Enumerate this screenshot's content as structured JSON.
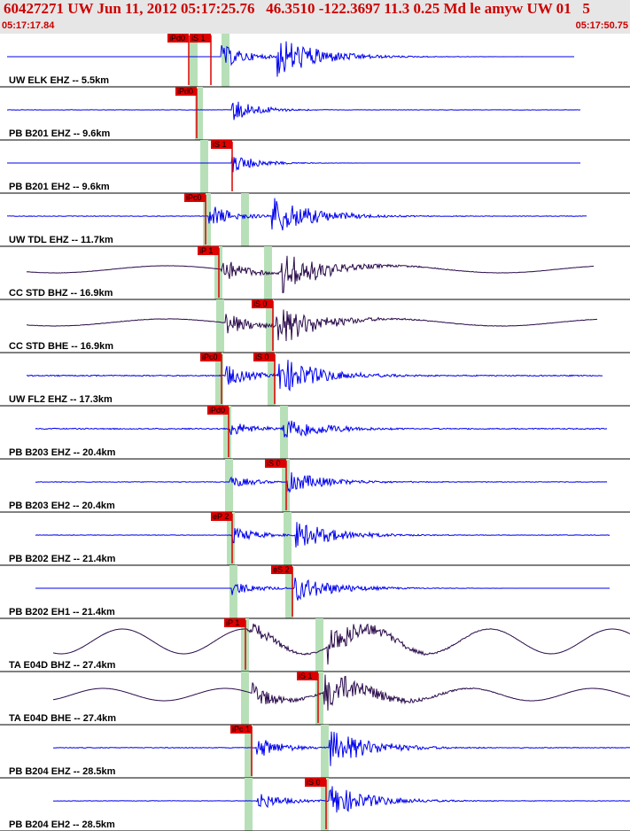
{
  "header": {
    "title": "60427271 UW Jun 11, 2012 05:17:25.76   46.3510 -122.3697 11.3 0.25 Md le amyw UW 01   5",
    "start_time": "05:17:17.84",
    "end_time": "05:17:50.75"
  },
  "colors": {
    "blue_trace": "#0000ee",
    "dark_trace": "#2a0a4a",
    "pick": "#dd0000",
    "window": "#b8e0b8",
    "text_red": "#cc0000"
  },
  "traces": [
    {
      "label": "UW ELK EHZ -- 5.5km",
      "color": "blue",
      "picks": [
        {
          "t": "iPd0"
        },
        {
          "t": "iS 1"
        }
      ],
      "onset": 0.31,
      "amp": 0.9,
      "noise": 0.0
    },
    {
      "label": "PB B201 EHZ -- 9.6km",
      "color": "blue",
      "picks": [
        {
          "t": "iPd0"
        }
      ],
      "onset": 0.35,
      "amp": 0.9,
      "noise": 0.04
    },
    {
      "label": "PB B201 EH2 -- 9.6km",
      "color": "blue",
      "picks": [
        {
          "t": "iS 1"
        }
      ],
      "onset": 0.37,
      "amp": 0.7,
      "noise": 0.0
    },
    {
      "label": "UW TDL EHZ -- 11.7km",
      "color": "blue",
      "picks": [
        {
          "t": "iPc0"
        }
      ],
      "onset": 0.33,
      "amp": 0.85,
      "noise": 0.06
    },
    {
      "label": "CC STD BHZ -- 16.9km",
      "color": "dark",
      "picks": [
        {
          "t": "iP 1"
        }
      ],
      "onset": 0.35,
      "amp": 0.9,
      "noise": 0.03
    },
    {
      "label": "CC STD BHE -- 16.9km",
      "color": "dark",
      "picks": [
        {
          "t": "iS 0"
        }
      ],
      "onset": 0.36,
      "amp": 0.85,
      "noise": 0.05
    },
    {
      "label": "UW FL2 EHZ -- 17.3km",
      "color": "blue",
      "picks": [
        {
          "t": "iPc0"
        },
        {
          "t": "iS 0"
        }
      ],
      "onset": 0.35,
      "amp": 0.8,
      "noise": 0.12
    },
    {
      "label": "PB B203 EHZ -- 20.4km",
      "color": "blue",
      "picks": [
        {
          "t": "iPd0"
        }
      ],
      "onset": 0.37,
      "amp": 0.55,
      "noise": 0.12
    },
    {
      "label": "PB B203 EH2 -- 20.4km",
      "color": "blue",
      "picks": [
        {
          "t": "iS 0"
        }
      ],
      "onset": 0.37,
      "amp": 0.45,
      "noise": 0.07
    },
    {
      "label": "PB B202 EHZ -- 21.4km",
      "color": "blue",
      "picks": [
        {
          "t": "eP 2"
        }
      ],
      "onset": 0.46,
      "amp": 0.6,
      "noise": 0.06
    },
    {
      "label": "PB B202 EH1 -- 21.4km",
      "color": "blue",
      "picks": [
        {
          "t": "eS 2"
        }
      ],
      "onset": 0.47,
      "amp": 0.55,
      "noise": 0.0
    },
    {
      "label": "TA E04D BHZ -- 27.4km",
      "color": "dark",
      "picks": [
        {
          "t": "iP 1"
        }
      ],
      "onset": 0.52,
      "amp": 0.75,
      "noise": 0.0
    },
    {
      "label": "TA E04D BHE -- 27.4km",
      "color": "dark",
      "picks": [
        {
          "t": "iS 1"
        }
      ],
      "onset": 0.52,
      "amp": 0.9,
      "noise": 0.0
    },
    {
      "label": "PB B204 EHZ -- 28.5km",
      "color": "blue",
      "picks": [
        {
          "t": "iPc 1"
        }
      ],
      "onset": 0.52,
      "amp": 0.8,
      "noise": 0.08
    },
    {
      "label": "PB B204 EH2 -- 28.5km",
      "color": "blue",
      "picks": [
        {
          "t": "iS 0"
        }
      ],
      "onset": 0.52,
      "amp": 0.7,
      "noise": 0.05
    }
  ]
}
